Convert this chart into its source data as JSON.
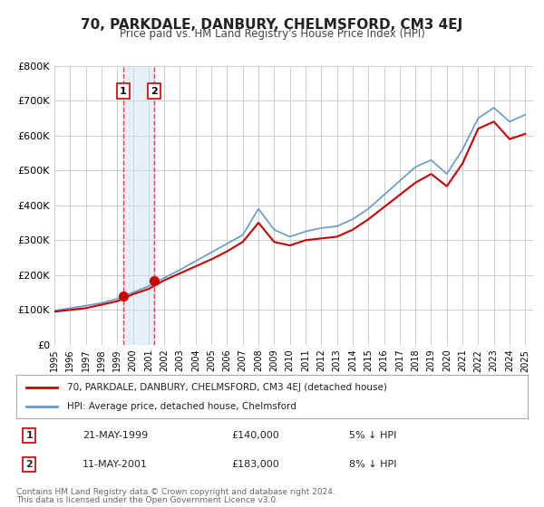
{
  "title": "70, PARKDALE, DANBURY, CHELMSFORD, CM3 4EJ",
  "subtitle": "Price paid vs. HM Land Registry's House Price Index (HPI)",
  "ylabel": "",
  "ylim": [
    0,
    800000
  ],
  "yticks": [
    0,
    100000,
    200000,
    300000,
    400000,
    500000,
    600000,
    700000,
    800000
  ],
  "ytick_labels": [
    "£0",
    "£100K",
    "£200K",
    "£300K",
    "£400K",
    "£500K",
    "£600K",
    "£700K",
    "£800K"
  ],
  "xlim_start": 1995.0,
  "xlim_end": 2025.5,
  "xticks": [
    1995,
    1996,
    1997,
    1998,
    1999,
    2000,
    2001,
    2002,
    2003,
    2004,
    2005,
    2006,
    2007,
    2008,
    2009,
    2010,
    2011,
    2012,
    2013,
    2014,
    2015,
    2016,
    2017,
    2018,
    2019,
    2020,
    2021,
    2022,
    2023,
    2024,
    2025
  ],
  "bg_color": "#ffffff",
  "grid_color": "#cccccc",
  "sale1_date": 1999.38,
  "sale1_price": 140000,
  "sale2_date": 2001.36,
  "sale2_price": 183000,
  "sale_color": "#cc0000",
  "hpi_color": "#6699cc",
  "legend_label_red": "70, PARKDALE, DANBURY, CHELMSFORD, CM3 4EJ (detached house)",
  "legend_label_blue": "HPI: Average price, detached house, Chelmsford",
  "footer1": "Contains HM Land Registry data © Crown copyright and database right 2024.",
  "footer2": "This data is licensed under the Open Government Licence v3.0.",
  "table_rows": [
    {
      "num": "1",
      "date": "21-MAY-1999",
      "price": "£140,000",
      "pct": "5% ↓ HPI"
    },
    {
      "num": "2",
      "date": "11-MAY-2001",
      "price": "£183,000",
      "pct": "8% ↓ HPI"
    }
  ],
  "shade_x1": 1999.38,
  "shade_x2": 2001.36,
  "hpi_years": [
    1995,
    1996,
    1997,
    1998,
    1999,
    2000,
    2001,
    2002,
    2003,
    2004,
    2005,
    2006,
    2007,
    2008,
    2009,
    2010,
    2011,
    2012,
    2013,
    2014,
    2015,
    2016,
    2017,
    2018,
    2019,
    2020,
    2021,
    2022,
    2023,
    2024,
    2025
  ],
  "hpi_values": [
    98000,
    105000,
    112000,
    120000,
    132000,
    150000,
    168000,
    192000,
    215000,
    240000,
    265000,
    290000,
    315000,
    390000,
    330000,
    310000,
    325000,
    335000,
    340000,
    360000,
    390000,
    430000,
    470000,
    510000,
    530000,
    490000,
    560000,
    650000,
    680000,
    640000,
    660000
  ],
  "red_years": [
    1995,
    1996,
    1997,
    1998,
    1999,
    2000,
    2001,
    2002,
    2003,
    2004,
    2005,
    2006,
    2007,
    2008,
    2009,
    2010,
    2011,
    2012,
    2013,
    2014,
    2015,
    2016,
    2017,
    2018,
    2019,
    2020,
    2021,
    2022,
    2023,
    2024,
    2025
  ],
  "red_values": [
    95000,
    100000,
    105000,
    115000,
    125000,
    145000,
    160000,
    185000,
    205000,
    225000,
    245000,
    268000,
    295000,
    350000,
    295000,
    285000,
    300000,
    305000,
    310000,
    330000,
    360000,
    395000,
    430000,
    465000,
    490000,
    455000,
    520000,
    620000,
    640000,
    590000,
    605000
  ]
}
